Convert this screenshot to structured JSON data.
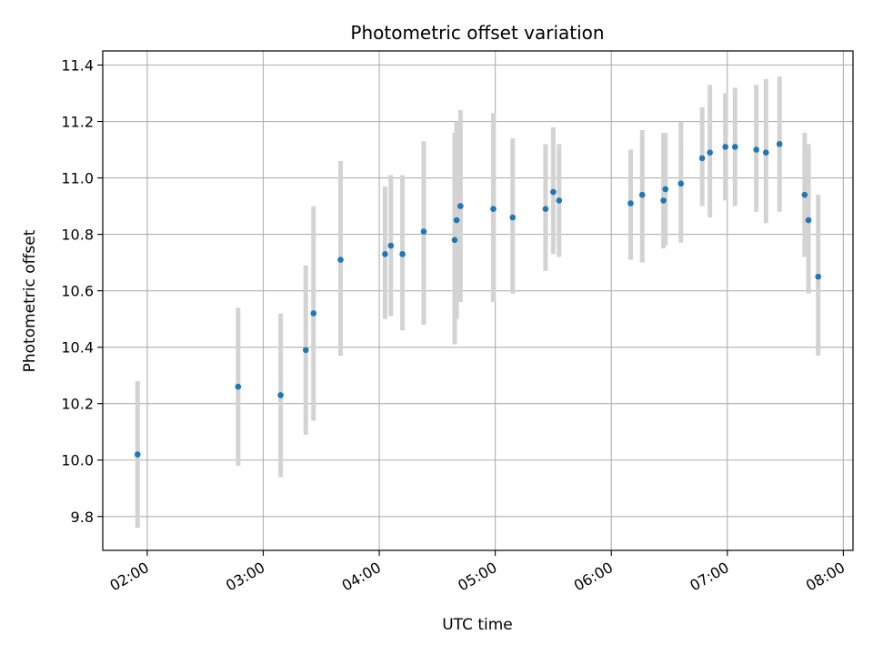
{
  "chart_data": {
    "type": "scatter",
    "title": "Photometric offset variation",
    "xlabel": "UTC time",
    "ylabel": "Photometric offset",
    "grid": true,
    "x_axis_type": "time",
    "xlim": [
      "01:37",
      "08:05"
    ],
    "ylim": [
      9.68,
      11.45
    ],
    "x_ticks": [
      "02:00",
      "03:00",
      "04:00",
      "05:00",
      "06:00",
      "07:00",
      "08:00"
    ],
    "y_ticks": [
      9.8,
      10.0,
      10.2,
      10.4,
      10.6,
      10.8,
      11.0,
      11.2,
      11.4
    ],
    "y_tick_labels": [
      "9.8",
      "10.0",
      "10.2",
      "10.4",
      "10.6",
      "10.8",
      "11.0",
      "11.2",
      "11.4"
    ],
    "colors": {
      "point": "#1f77b4",
      "errorbar": "#d3d3d3",
      "grid": "#b0b0b0"
    },
    "points": [
      {
        "x": "01:55",
        "y": 10.02,
        "ylow": 9.76,
        "yhigh": 10.28
      },
      {
        "x": "02:47",
        "y": 10.26,
        "ylow": 9.98,
        "yhigh": 10.54
      },
      {
        "x": "03:09",
        "y": 10.23,
        "ylow": 9.94,
        "yhigh": 10.52
      },
      {
        "x": "03:22",
        "y": 10.39,
        "ylow": 10.09,
        "yhigh": 10.69
      },
      {
        "x": "03:26",
        "y": 10.52,
        "ylow": 10.14,
        "yhigh": 10.9
      },
      {
        "x": "03:40",
        "y": 10.71,
        "ylow": 10.37,
        "yhigh": 11.06
      },
      {
        "x": "04:03",
        "y": 10.73,
        "ylow": 10.5,
        "yhigh": 10.97
      },
      {
        "x": "04:06",
        "y": 10.76,
        "ylow": 10.51,
        "yhigh": 11.01
      },
      {
        "x": "04:12",
        "y": 10.73,
        "ylow": 10.46,
        "yhigh": 11.01
      },
      {
        "x": "04:23",
        "y": 10.81,
        "ylow": 10.48,
        "yhigh": 11.13
      },
      {
        "x": "04:39",
        "y": 10.78,
        "ylow": 10.41,
        "yhigh": 11.16
      },
      {
        "x": "04:40",
        "y": 10.85,
        "ylow": 10.5,
        "yhigh": 11.2
      },
      {
        "x": "04:42",
        "y": 10.9,
        "ylow": 10.56,
        "yhigh": 11.24
      },
      {
        "x": "04:59",
        "y": 10.89,
        "ylow": 10.56,
        "yhigh": 11.23
      },
      {
        "x": "05:09",
        "y": 10.86,
        "ylow": 10.59,
        "yhigh": 11.14
      },
      {
        "x": "05:26",
        "y": 10.89,
        "ylow": 10.67,
        "yhigh": 11.12
      },
      {
        "x": "05:30",
        "y": 10.95,
        "ylow": 10.73,
        "yhigh": 11.18
      },
      {
        "x": "05:33",
        "y": 10.92,
        "ylow": 10.72,
        "yhigh": 11.12
      },
      {
        "x": "06:10",
        "y": 10.91,
        "ylow": 10.71,
        "yhigh": 11.1
      },
      {
        "x": "06:16",
        "y": 10.94,
        "ylow": 10.7,
        "yhigh": 11.17
      },
      {
        "x": "06:27",
        "y": 10.92,
        "ylow": 10.75,
        "yhigh": 11.16
      },
      {
        "x": "06:28",
        "y": 10.96,
        "ylow": 10.76,
        "yhigh": 11.16
      },
      {
        "x": "06:36",
        "y": 10.98,
        "ylow": 10.77,
        "yhigh": 11.2
      },
      {
        "x": "06:47",
        "y": 11.07,
        "ylow": 10.9,
        "yhigh": 11.25
      },
      {
        "x": "06:51",
        "y": 11.09,
        "ylow": 10.86,
        "yhigh": 11.33
      },
      {
        "x": "06:59",
        "y": 11.11,
        "ylow": 10.92,
        "yhigh": 11.3
      },
      {
        "x": "07:04",
        "y": 11.11,
        "ylow": 10.9,
        "yhigh": 11.32
      },
      {
        "x": "07:15",
        "y": 11.1,
        "ylow": 10.88,
        "yhigh": 11.33
      },
      {
        "x": "07:20",
        "y": 11.09,
        "ylow": 10.84,
        "yhigh": 11.35
      },
      {
        "x": "07:27",
        "y": 11.12,
        "ylow": 10.88,
        "yhigh": 11.36
      },
      {
        "x": "07:40",
        "y": 10.94,
        "ylow": 10.72,
        "yhigh": 11.16
      },
      {
        "x": "07:42",
        "y": 10.85,
        "ylow": 10.59,
        "yhigh": 11.12
      },
      {
        "x": "07:47",
        "y": 10.65,
        "ylow": 10.37,
        "yhigh": 10.94
      }
    ]
  }
}
